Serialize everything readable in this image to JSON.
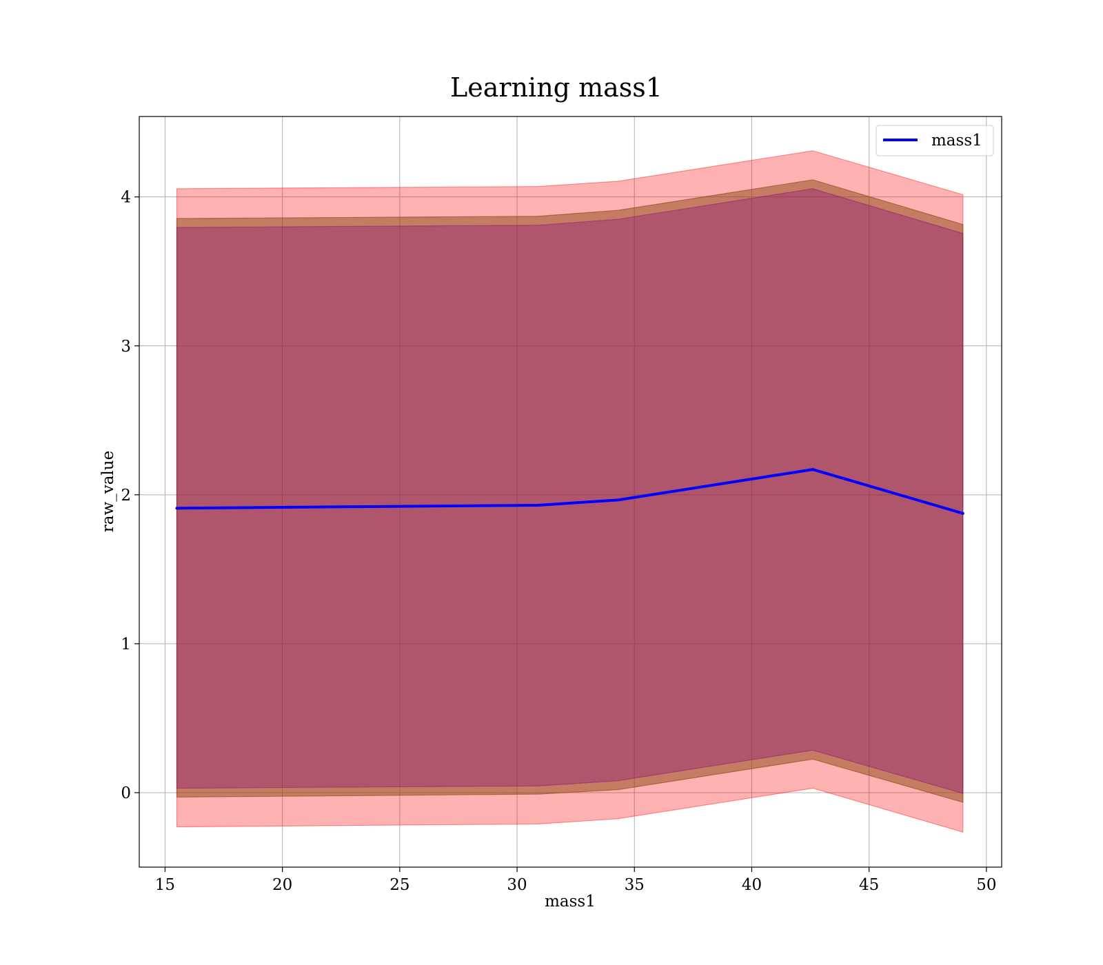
{
  "chart_data": {
    "type": "line",
    "title": "Learning mass1",
    "xlabel": "mass1",
    "ylabel": "raw_value",
    "xlim": [
      13.9,
      50.65
    ],
    "ylim": [
      -0.5,
      4.54
    ],
    "x_ticks": [
      15,
      20,
      25,
      30,
      35,
      40,
      45,
      50
    ],
    "y_ticks": [
      0,
      1,
      2,
      3,
      4
    ],
    "grid": true,
    "legend_position": "upper-right",
    "x": [
      15.5,
      30.9,
      34.3,
      42.6,
      49.0
    ],
    "series": [
      {
        "name": "mass1",
        "color": "#0000ff",
        "values": [
          1.91,
          1.93,
          1.965,
          2.17,
          1.875
        ]
      }
    ],
    "bands": [
      {
        "color": "#ff0000",
        "opacity": 0.3,
        "lower": [
          -0.23,
          -0.21,
          -0.175,
          0.03,
          -0.265
        ],
        "upper": [
          4.055,
          4.07,
          4.105,
          4.31,
          4.015
        ]
      },
      {
        "color": "#8b4513",
        "opacity": 0.5,
        "lower": [
          -0.03,
          -0.01,
          0.02,
          0.225,
          -0.065
        ],
        "upper": [
          3.855,
          3.87,
          3.91,
          4.115,
          3.815
        ]
      },
      {
        "color": "#800080",
        "opacity": 0.3,
        "lower": [
          0.03,
          0.045,
          0.08,
          0.285,
          -0.005
        ],
        "upper": [
          3.795,
          3.81,
          3.85,
          4.055,
          3.755
        ]
      }
    ]
  }
}
